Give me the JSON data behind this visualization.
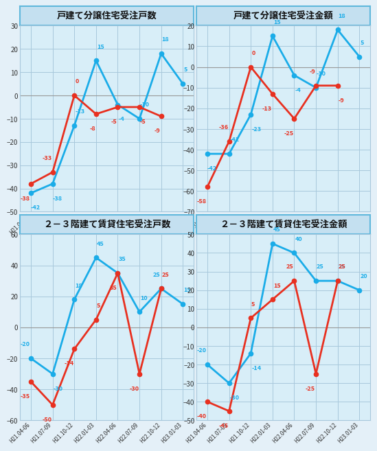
{
  "x_labels": [
    "H21.04-06",
    "H21.07-09",
    "H21.10-12",
    "H22.01-03",
    "H22.04-06",
    "H22.07-09",
    "H22.10-12",
    "H23.01-03"
  ],
  "charts": [
    {
      "title": "戸建て分譲住宅受注戸数",
      "ylim": [
        -50,
        30
      ],
      "yticks": [
        -50,
        -40,
        -30,
        -20,
        -10,
        0,
        10,
        20,
        30
      ],
      "blue": [
        -42,
        -38,
        -13,
        15,
        -4,
        -10,
        18,
        5
      ],
      "red": [
        -38,
        -33,
        0,
        -8,
        -5,
        -5,
        -9,
        null
      ],
      "blue_lbl_dx": [
        0,
        0,
        0.1,
        0.1,
        0.1,
        0.1,
        0.1,
        0.1
      ],
      "blue_lbl_dy": [
        -1,
        -1,
        1,
        1,
        -1,
        1,
        1,
        1
      ],
      "red_lbl_dx": [
        -0.1,
        -0.1,
        0.1,
        -0.1,
        -0.1,
        0.1,
        -0.1,
        0
      ],
      "red_lbl_dy": [
        -1,
        1,
        1,
        -1,
        -1,
        -1,
        -1,
        0
      ]
    },
    {
      "title": "戸建て分譲住宅受注金額",
      "ylim": [
        -70,
        20
      ],
      "yticks": [
        -70,
        -60,
        -50,
        -40,
        -30,
        -20,
        -10,
        0,
        10,
        20
      ],
      "blue": [
        -42,
        -42,
        -23,
        15,
        -4,
        -10,
        18,
        5
      ],
      "red": [
        -58,
        -36,
        0,
        -13,
        -25,
        -9,
        -9,
        null
      ],
      "blue_lbl_dx": [
        0,
        0.1,
        0.1,
        0.1,
        0.1,
        0.1,
        0.1,
        0.1
      ],
      "blue_lbl_dy": [
        -1,
        1,
        -1,
        1,
        -1,
        1,
        1,
        1
      ],
      "red_lbl_dx": [
        -0.1,
        -0.1,
        0.1,
        -0.1,
        -0.1,
        -0.1,
        0.1,
        0
      ],
      "red_lbl_dy": [
        -1,
        1,
        1,
        -1,
        -1,
        1,
        -1,
        0
      ]
    },
    {
      "title": "２－３階建て賃貸住宅受注戸数",
      "ylim": [
        -60,
        60
      ],
      "yticks": [
        -60,
        -40,
        -20,
        0,
        20,
        40,
        60
      ],
      "blue": [
        -20,
        -30,
        18,
        45,
        35,
        10,
        25,
        15
      ],
      "red": [
        -35,
        -50,
        -14,
        5,
        35,
        -30,
        25,
        null
      ],
      "blue_lbl_dx": [
        -0.1,
        0.1,
        0.1,
        0.1,
        0.1,
        0.1,
        -0.1,
        0.1
      ],
      "blue_lbl_dy": [
        1,
        -1,
        1,
        1,
        1,
        1,
        1,
        1
      ],
      "red_lbl_dx": [
        -0.1,
        -0.1,
        -0.1,
        0.1,
        -0.1,
        -0.1,
        0.1,
        0
      ],
      "red_lbl_dy": [
        -1,
        -1,
        -1,
        1,
        -1,
        -1,
        1,
        0
      ]
    },
    {
      "title": "２－３階建て賃貸住宅受注金額",
      "ylim": [
        -50,
        50
      ],
      "yticks": [
        -50,
        -40,
        -30,
        -20,
        -10,
        0,
        10,
        20,
        30,
        40,
        50
      ],
      "blue": [
        -20,
        -30,
        -14,
        45,
        40,
        25,
        25,
        20
      ],
      "red": [
        -40,
        -45,
        5,
        15,
        25,
        -25,
        25,
        null
      ],
      "blue_lbl_dx": [
        -0.1,
        0.1,
        0.1,
        0.1,
        0.1,
        0.1,
        0.1,
        0.1
      ],
      "blue_lbl_dy": [
        1,
        -1,
        -1,
        1,
        1,
        1,
        1,
        1
      ],
      "red_lbl_dx": [
        -0.1,
        -0.1,
        0.1,
        0.1,
        -0.1,
        -0.1,
        0.1,
        0
      ],
      "red_lbl_dy": [
        -1,
        -1,
        1,
        1,
        1,
        -1,
        1,
        0
      ]
    }
  ],
  "blue_color": "#1AACE8",
  "red_color": "#E83020",
  "bg_color": "#D8EEF8",
  "grid_color": "#A8C8DC",
  "title_bg": "#C4E0F0",
  "title_border": "#60B8DC",
  "outer_bg": "#E4F0F8",
  "zero_line_color": "#999999"
}
